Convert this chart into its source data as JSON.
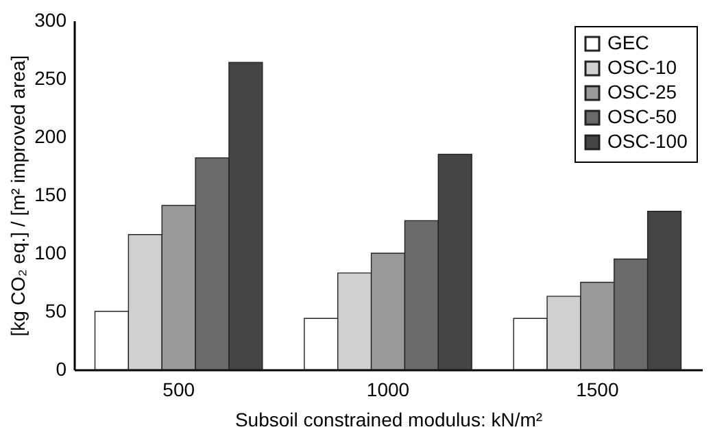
{
  "chart_data": {
    "type": "bar",
    "xlabel": "Subsoil constrained modulus: kN/m²",
    "ylabel": "[kg CO₂ eq.] / [m² improved area]",
    "categories": [
      "500",
      "1000",
      "1500"
    ],
    "series": [
      {
        "name": "GEC",
        "color": "#ffffff",
        "values": [
          50,
          44,
          44
        ]
      },
      {
        "name": "OSC-10",
        "color": "#d0d0d0",
        "values": [
          116,
          83,
          63
        ]
      },
      {
        "name": "OSC-25",
        "color": "#999999",
        "values": [
          141,
          100,
          75
        ]
      },
      {
        "name": "OSC-50",
        "color": "#6a6a6a",
        "values": [
          182,
          128,
          95
        ]
      },
      {
        "name": "OSC-100",
        "color": "#454545",
        "values": [
          264,
          185,
          136
        ]
      }
    ],
    "ylim": [
      0,
      300
    ],
    "yticks": [
      0,
      50,
      100,
      150,
      200,
      250,
      300
    ],
    "grid": false,
    "legend": "top right"
  }
}
